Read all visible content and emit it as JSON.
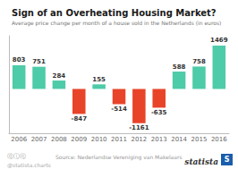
{
  "chart_data": {
    "type": "bar",
    "title": "Sign of an Overheating Housing Market?",
    "subtitle": "Average price change per month of a house sold in the Netherlands (in euros)",
    "categories": [
      "2006",
      "2007",
      "2008",
      "2009",
      "2010",
      "2011",
      "2012",
      "2013",
      "2014",
      "2015",
      "2016"
    ],
    "values": [
      803,
      751,
      284,
      -847,
      155,
      -514,
      -1161,
      -635,
      588,
      758,
      1469
    ],
    "colors": [
      "#4ecba8",
      "#4ecba8",
      "#4ecba8",
      "#e8442a",
      "#4ecba8",
      "#e8442a",
      "#e8442a",
      "#e8442a",
      "#4ecba8",
      "#4ecba8",
      "#4ecba8"
    ],
    "ylim": [
      -1500,
      1800
    ],
    "data_labels": true,
    "tick_labels": "x",
    "grid": false,
    "annotations": [
      "⓪ⓘⓒ",
      "@statista.charts",
      "Source: Nederlandse Vereniging van Makelaars",
      "statista",
      "S"
    ]
  }
}
